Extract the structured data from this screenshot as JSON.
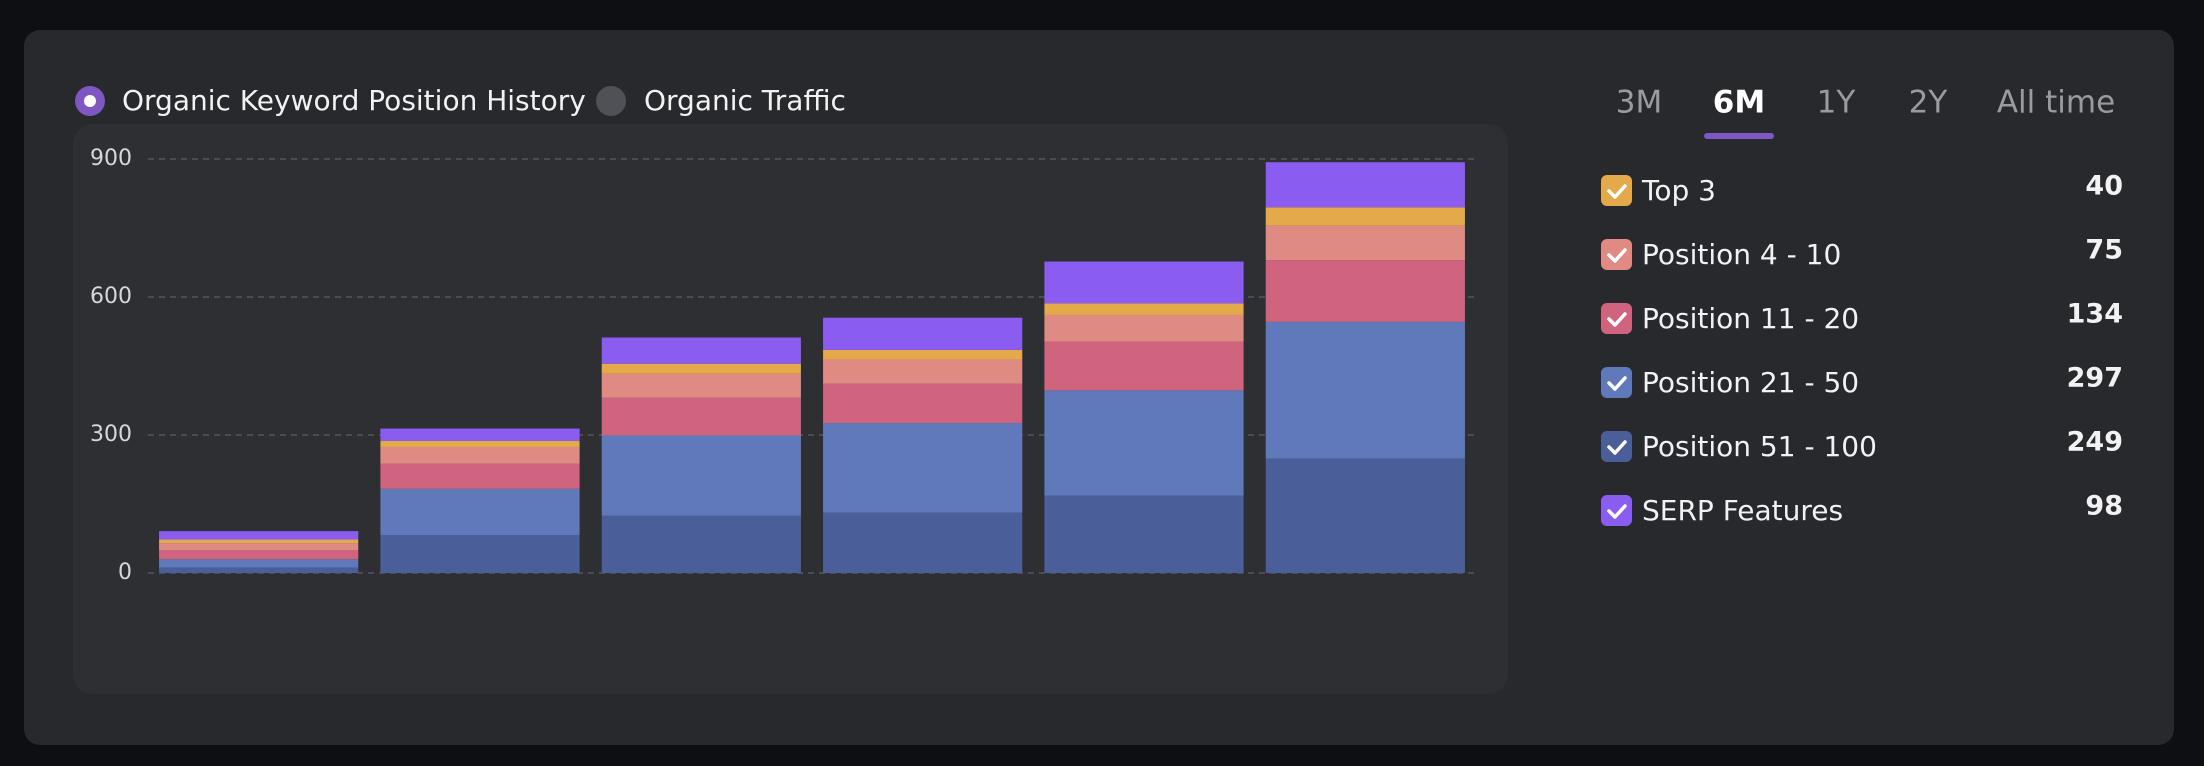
{
  "views": [
    "Organic Keyword Position History",
    "Organic Traffic"
  ],
  "tabs": [
    "3M",
    "6M",
    "1Y",
    "2Y",
    "All time"
  ],
  "chart_data": {
    "type": "stacked-bar",
    "categories": [
      null,
      null,
      null,
      null,
      null,
      null
    ],
    "ylim": [
      0,
      900
    ],
    "yticks": [
      0,
      300,
      600,
      900
    ],
    "grid": true,
    "series": [
      {
        "name": "Top 3",
        "color": "#e4a94a",
        "values": [
          8,
          13,
          22,
          21,
          25,
          40
        ]
      },
      {
        "name": "Position 4 - 10",
        "color": "#e08a84",
        "values": [
          15,
          36,
          52,
          52,
          58,
          75
        ]
      },
      {
        "name": "Position 11 - 20",
        "color": "#d0647f",
        "values": [
          20,
          55,
          82,
          86,
          106,
          134
        ]
      },
      {
        "name": "Position 21 - 50",
        "color": "#5f79ba",
        "values": [
          18,
          101,
          174,
          195,
          229,
          297
        ]
      },
      {
        "name": "Position 51 - 100",
        "color": "#4a5f9a",
        "values": [
          12,
          82,
          125,
          131,
          168,
          249
        ]
      },
      {
        "name": "SERP Features",
        "color": "#8b5cf0",
        "values": [
          18,
          27,
          57,
          70,
          91,
          98
        ]
      }
    ]
  }
}
